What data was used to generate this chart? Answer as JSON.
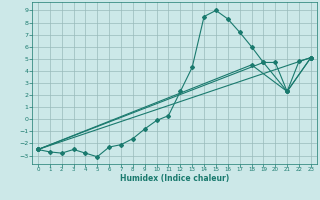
{
  "xlabel": "Humidex (Indice chaleur)",
  "bg_color": "#cce8e8",
  "line_color": "#1a7a6e",
  "grid_color": "#99bbbb",
  "xlim": [
    -0.5,
    23.5
  ],
  "ylim": [
    -3.7,
    9.7
  ],
  "xticks": [
    0,
    1,
    2,
    3,
    4,
    5,
    6,
    7,
    8,
    9,
    10,
    11,
    12,
    13,
    14,
    15,
    16,
    17,
    18,
    19,
    20,
    21,
    22,
    23
  ],
  "yticks": [
    -3,
    -2,
    -1,
    0,
    1,
    2,
    3,
    4,
    5,
    6,
    7,
    8,
    9
  ],
  "main_x": [
    0,
    1,
    2,
    3,
    4,
    5,
    6,
    7,
    8,
    9,
    10,
    11,
    12,
    13,
    14,
    15,
    16,
    17,
    18,
    19,
    20,
    21,
    22,
    23
  ],
  "main_y": [
    -2.5,
    -2.7,
    -2.8,
    -2.5,
    -2.8,
    -3.1,
    -2.3,
    -2.1,
    -1.6,
    -0.8,
    -0.1,
    0.3,
    2.3,
    4.3,
    8.5,
    9.0,
    8.3,
    7.2,
    6.0,
    4.7,
    4.7,
    2.3,
    4.8,
    5.1
  ],
  "trend_lines": [
    {
      "x": [
        0,
        23
      ],
      "y": [
        -2.5,
        5.1
      ]
    },
    {
      "x": [
        0,
        19,
        21,
        23
      ],
      "y": [
        -2.5,
        4.7,
        2.3,
        5.1
      ]
    },
    {
      "x": [
        0,
        18,
        21,
        23
      ],
      "y": [
        -2.5,
        4.5,
        2.3,
        5.1
      ]
    }
  ]
}
